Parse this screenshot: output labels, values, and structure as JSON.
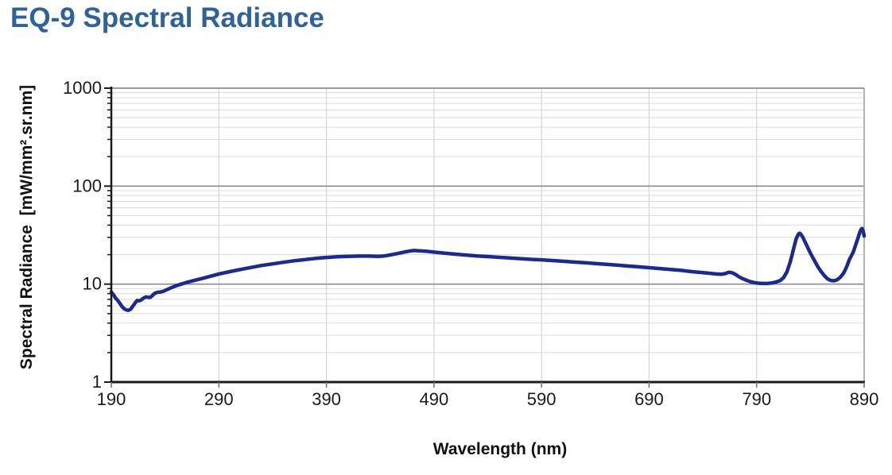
{
  "colors": {
    "title": "#2E6398",
    "series": "#1A2A90",
    "grid_major": "#8C8C8C",
    "grid_minor": "#DCDCDC",
    "grid_vertical": "#D4D4D4",
    "border_right": "#ABABAB",
    "axis": "#1A1A1A",
    "x_tick_mark": "#777777",
    "tick_labels": "#1A1A1A",
    "background": "#FFFFFF"
  },
  "chart_data": {
    "type": "line",
    "title": "EQ-9 Spectral Radiance",
    "xlabel": "Wavelength (nm)",
    "ylabel": "Spectral Radiance  [mW/mm².sr.nm]",
    "x_scale": "linear",
    "y_scale": "log",
    "xlim": [
      190,
      890
    ],
    "ylim": [
      1,
      1000
    ],
    "x_ticks": [
      190,
      290,
      390,
      490,
      590,
      690,
      790,
      890
    ],
    "y_ticks": [
      1,
      10,
      100,
      1000
    ],
    "grid": {
      "major": true,
      "minor": true
    },
    "legend": "none",
    "series": [
      {
        "name": "EQ-9 spectral radiance",
        "color": "#1A2A90",
        "points": [
          [
            190,
            8.3
          ],
          [
            192,
            7.8
          ],
          [
            194,
            7.2
          ],
          [
            196,
            6.8
          ],
          [
            198,
            6.35
          ],
          [
            200,
            5.9
          ],
          [
            202,
            5.6
          ],
          [
            204,
            5.45
          ],
          [
            206,
            5.4
          ],
          [
            208,
            5.55
          ],
          [
            210,
            5.95
          ],
          [
            212,
            6.4
          ],
          [
            214,
            6.8
          ],
          [
            216,
            6.75
          ],
          [
            218,
            6.9
          ],
          [
            220,
            7.2
          ],
          [
            222,
            7.4
          ],
          [
            224,
            7.35
          ],
          [
            226,
            7.3
          ],
          [
            228,
            7.6
          ],
          [
            230,
            8.0
          ],
          [
            233,
            8.25
          ],
          [
            236,
            8.3
          ],
          [
            239,
            8.5
          ],
          [
            242,
            8.8
          ],
          [
            246,
            9.2
          ],
          [
            250,
            9.6
          ],
          [
            255,
            10.0
          ],
          [
            260,
            10.4
          ],
          [
            265,
            10.75
          ],
          [
            270,
            11.1
          ],
          [
            275,
            11.45
          ],
          [
            280,
            11.85
          ],
          [
            285,
            12.25
          ],
          [
            290,
            12.7
          ],
          [
            300,
            13.4
          ],
          [
            310,
            14.1
          ],
          [
            320,
            14.8
          ],
          [
            330,
            15.5
          ],
          [
            340,
            16.1
          ],
          [
            350,
            16.7
          ],
          [
            360,
            17.3
          ],
          [
            370,
            17.8
          ],
          [
            380,
            18.3
          ],
          [
            390,
            18.7
          ],
          [
            400,
            19.0
          ],
          [
            410,
            19.2
          ],
          [
            420,
            19.3
          ],
          [
            430,
            19.3
          ],
          [
            438,
            19.2
          ],
          [
            444,
            19.4
          ],
          [
            450,
            19.9
          ],
          [
            456,
            20.5
          ],
          [
            462,
            21.2
          ],
          [
            468,
            21.8
          ],
          [
            472,
            22.0
          ],
          [
            476,
            21.9
          ],
          [
            482,
            21.7
          ],
          [
            490,
            21.2
          ],
          [
            500,
            20.7
          ],
          [
            510,
            20.2
          ],
          [
            520,
            19.8
          ],
          [
            530,
            19.4
          ],
          [
            540,
            19.1
          ],
          [
            550,
            18.8
          ],
          [
            560,
            18.5
          ],
          [
            570,
            18.2
          ],
          [
            580,
            17.9
          ],
          [
            590,
            17.7
          ],
          [
            600,
            17.4
          ],
          [
            610,
            17.1
          ],
          [
            620,
            16.8
          ],
          [
            630,
            16.5
          ],
          [
            640,
            16.2
          ],
          [
            650,
            15.9
          ],
          [
            660,
            15.6
          ],
          [
            670,
            15.3
          ],
          [
            680,
            15.0
          ],
          [
            690,
            14.7
          ],
          [
            700,
            14.4
          ],
          [
            710,
            14.1
          ],
          [
            720,
            13.8
          ],
          [
            730,
            13.4
          ],
          [
            740,
            13.1
          ],
          [
            746,
            12.9
          ],
          [
            752,
            12.7
          ],
          [
            757,
            12.6
          ],
          [
            761,
            12.8
          ],
          [
            764,
            13.2
          ],
          [
            767,
            13.1
          ],
          [
            770,
            12.6
          ],
          [
            773,
            12.0
          ],
          [
            776,
            11.5
          ],
          [
            780,
            11.0
          ],
          [
            784,
            10.6
          ],
          [
            788,
            10.35
          ],
          [
            792,
            10.2
          ],
          [
            796,
            10.15
          ],
          [
            800,
            10.15
          ],
          [
            804,
            10.25
          ],
          [
            808,
            10.5
          ],
          [
            812,
            10.9
          ],
          [
            815,
            11.6
          ],
          [
            818,
            13.2
          ],
          [
            821,
            16.5
          ],
          [
            823,
            20.0
          ],
          [
            825,
            24.5
          ],
          [
            827,
            29.5
          ],
          [
            829,
            32.5
          ],
          [
            830,
            33.0
          ],
          [
            831,
            32.4
          ],
          [
            833,
            30.0
          ],
          [
            835,
            27.0
          ],
          [
            838,
            23.0
          ],
          [
            841,
            19.7
          ],
          [
            844,
            17.2
          ],
          [
            847,
            15.0
          ],
          [
            850,
            13.4
          ],
          [
            853,
            12.2
          ],
          [
            856,
            11.3
          ],
          [
            859,
            10.9
          ],
          [
            862,
            10.8
          ],
          [
            865,
            11.1
          ],
          [
            868,
            11.8
          ],
          [
            871,
            13.0
          ],
          [
            874,
            15.3
          ],
          [
            876,
            17.6
          ],
          [
            878,
            19.4
          ],
          [
            880,
            21.5
          ],
          [
            882,
            25.0
          ],
          [
            884,
            29.0
          ],
          [
            886,
            34.0
          ],
          [
            887,
            36.0
          ],
          [
            888,
            37.0
          ],
          [
            889,
            35.0
          ],
          [
            890,
            31.0
          ]
        ]
      }
    ]
  }
}
